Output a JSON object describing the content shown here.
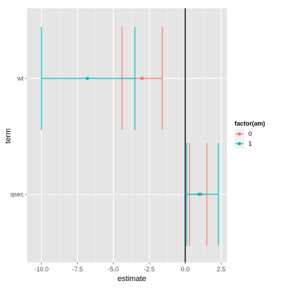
{
  "chart_data": {
    "type": "scatter",
    "subtype": "coefficient-errorbar",
    "x": {
      "label": "estimate",
      "lim": [
        -11.0,
        2.9
      ],
      "ticks": [
        -10.0,
        -7.5,
        -5.0,
        -2.5,
        0.0,
        2.5
      ],
      "tick_labels": [
        "-10.0",
        "-7.5",
        "-5.0",
        "-2.5",
        "0.0",
        "2.5"
      ]
    },
    "y": {
      "label": "term",
      "categories": [
        "wt",
        "qsec"
      ]
    },
    "reference_line_x": 0,
    "grid": true,
    "legend": {
      "title": "factor(am)",
      "placement": "right"
    },
    "series": [
      {
        "name": "0",
        "color": "#F8766D",
        "points": [
          {
            "term": "wt",
            "estimate": -3.0,
            "inner_low": -4.4,
            "inner_high": -1.6,
            "outer_low": -4.4,
            "outer_high": -1.6
          },
          {
            "term": "qsec",
            "estimate": 1.1,
            "inner_low": 0.3,
            "inner_high": 1.5,
            "outer_low": 0.3,
            "outer_high": 1.5
          }
        ]
      },
      {
        "name": "1",
        "color": "#00BFC4",
        "points": [
          {
            "term": "wt",
            "estimate": -6.8,
            "inner_low": -10.0,
            "inner_high": -3.5,
            "outer_low": -10.0,
            "outer_high": -3.5
          },
          {
            "term": "qsec",
            "estimate": 0.95,
            "inner_low": 0.1,
            "inner_high": 2.3,
            "outer_low": 0.1,
            "outer_high": 2.3
          }
        ]
      }
    ]
  }
}
